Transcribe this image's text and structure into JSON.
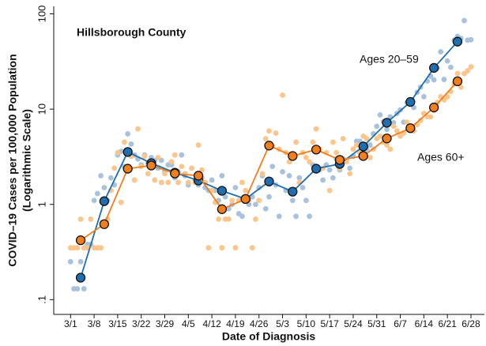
{
  "chart_data": {
    "type": "line",
    "title": "Hillsborough County",
    "xlabel": "Date of Diagnosis",
    "ylabel": [
      "COVID–19 Cases per 100,000 Population",
      "(Logarithmic Scale)"
    ],
    "yscale": "log",
    "grid": false,
    "xlim": [
      "2/25",
      "7/2"
    ],
    "xticks": [
      "3/1",
      "3/8",
      "3/15",
      "3/22",
      "3/29",
      "4/5",
      "4/12",
      "4/19",
      "4/26",
      "5/3",
      "5/10",
      "5/17",
      "5/24",
      "5/31",
      "6/7",
      "6/14",
      "6/21",
      "6/28"
    ],
    "ylim": [
      0.07,
      120
    ],
    "yticks": [
      100,
      10,
      1,
      {
        "value": 0.1,
        "label": ".1"
      }
    ],
    "x": [
      "3/1",
      "3/2",
      "3/3",
      "3/4",
      "3/5",
      "3/6",
      "3/7",
      "3/8",
      "3/9",
      "3/10",
      "3/11",
      "3/12",
      "3/13",
      "3/14",
      "3/15",
      "3/16",
      "3/17",
      "3/18",
      "3/19",
      "3/20",
      "3/21",
      "3/22",
      "3/23",
      "3/24",
      "3/25",
      "3/26",
      "3/27",
      "3/28",
      "3/29",
      "3/30",
      "3/31",
      "4/1",
      "4/2",
      "4/3",
      "4/4",
      "4/5",
      "4/6",
      "4/7",
      "4/8",
      "4/9",
      "4/10",
      "4/11",
      "4/12",
      "4/13",
      "4/14",
      "4/15",
      "4/16",
      "4/17",
      "4/18",
      "4/19",
      "4/20",
      "4/21",
      "4/22",
      "4/23",
      "4/24",
      "4/25",
      "4/26",
      "4/27",
      "4/28",
      "4/29",
      "4/30",
      "5/1",
      "5/2",
      "5/3",
      "5/4",
      "5/5",
      "5/6",
      "5/7",
      "5/8",
      "5/9",
      "5/10",
      "5/11",
      "5/12",
      "5/13",
      "5/14",
      "5/15",
      "5/16",
      "5/17",
      "5/18",
      "5/19",
      "5/20",
      "5/21",
      "5/22",
      "5/23",
      "5/24",
      "5/25",
      "5/26",
      "5/27",
      "5/28",
      "5/29",
      "5/30",
      "5/31",
      "6/1",
      "6/2",
      "6/3",
      "6/4",
      "6/5",
      "6/6",
      "6/7",
      "6/8",
      "6/9",
      "6/10",
      "6/11",
      "6/12",
      "6/13",
      "6/14",
      "6/15",
      "6/16",
      "6/17",
      "6/18",
      "6/19",
      "6/20",
      "6/21",
      "6/22",
      "6/23",
      "6/24",
      "6/25",
      "6/26",
      "6/27",
      "6/28"
    ],
    "series": [
      {
        "type": "scatter",
        "color": "#a8c2de",
        "values": [
          0.25,
          0.13,
          0.13,
          0.25,
          0.13,
          0.38,
          0.38,
          1.1,
          1.3,
          2.0,
          1.5,
          1.1,
          1.9,
          1.6,
          3.3,
          3.6,
          2.5,
          5.5,
          4.3,
          3.3,
          3.0,
          2.6,
          3.3,
          2.7,
          3.1,
          2.9,
          2.4,
          2.9,
          2.2,
          2.6,
          2.6,
          1.9,
          2.2,
          3.3,
          2.0,
          1.6,
          2.4,
          1.8,
          1.6,
          1.9,
          1.5,
          1.4,
          1.8,
          1.4,
          1.1,
          2.0,
          1.2,
          0.9,
          1.0,
          1.5,
          0.8,
          0.75,
          1.1,
          1.0,
          1.2,
          1.0,
          1.5,
          2.0,
          0.9,
          1.2,
          2.5,
          1.6,
          0.75,
          2.2,
          1.4,
          2.0,
          1.1,
          0.75,
          1.9,
          1.5,
          1.1,
          0.75,
          2.6,
          2.4,
          2.3,
          1.8,
          2.6,
          2.3,
          1.9,
          3.0,
          2.3,
          3.0,
          2.9,
          2.4,
          3.2,
          4.6,
          4.6,
          4.3,
          3.8,
          4.2,
          5.5,
          6.6,
          8.7,
          7.4,
          6.1,
          8.3,
          7.2,
          9.0,
          9.8,
          7.3,
          11.7,
          12.2,
          10.4,
          15.0,
          17.0,
          13.5,
          19.7,
          22.1,
          20.3,
          27.0,
          40.0,
          20.5,
          32.0,
          27.5,
          53.0,
          58.0,
          55.4,
          85.0,
          53.0,
          53.5
        ]
      },
      {
        "type": "scatter",
        "color": "#fcc58c",
        "values": [
          0.35,
          0.35,
          0.35,
          0.7,
          0.35,
          0.35,
          0.7,
          0.35,
          0.35,
          0.35,
          1.05,
          0.7,
          1.4,
          2.4,
          3.5,
          1.05,
          4.5,
          2.4,
          3.2,
          1.8,
          6.2,
          2.5,
          3.2,
          2.1,
          2.8,
          1.8,
          3.1,
          1.7,
          2.1,
          1.7,
          2.8,
          3.3,
          1.7,
          2.5,
          2.1,
          1.7,
          2.4,
          1.7,
          4.2,
          2.3,
          1.7,
          0.35,
          1.4,
          1.05,
          0.7,
          0.35,
          0.7,
          0.7,
          1.1,
          0.35,
          1.1,
          1.7,
          1.4,
          1.1,
          0.35,
          0.7,
          1.1,
          2.1,
          4.9,
          5.9,
          4.1,
          5.6,
          3.8,
          14.0,
          3.5,
          2.8,
          3.1,
          4.5,
          1.7,
          3.5,
          3.1,
          2.8,
          4.5,
          6.2,
          3.8,
          2.4,
          3.5,
          1.4,
          4.5,
          3.5,
          2.4,
          4.9,
          2.8,
          2.1,
          3.8,
          4.2,
          3.5,
          5.2,
          4.9,
          3.1,
          3.8,
          4.9,
          5.2,
          4.5,
          4.2,
          3.8,
          6.6,
          5.9,
          5.2,
          5.6,
          7.3,
          6.6,
          5.9,
          6.9,
          7.6,
          9.0,
          8.3,
          8.3,
          9.7,
          11.8,
          13.5,
          12.5,
          13.5,
          15.3,
          18.4,
          23.6,
          17.0,
          23.6,
          25.3,
          27.8
        ]
      },
      {
        "type": "line",
        "name": "Ages 20–59",
        "color": "#1f6eae",
        "x": [
          "3/4",
          "3/11",
          "3/18",
          "3/25",
          "4/1",
          "4/8",
          "4/15",
          "4/22",
          "4/29",
          "5/6",
          "5/13",
          "5/20",
          "5/27",
          "6/3",
          "6/10",
          "6/17",
          "6/24"
        ],
        "values": [
          0.17,
          1.08,
          3.55,
          2.71,
          2.15,
          1.78,
          1.39,
          1.14,
          1.74,
          1.36,
          2.37,
          2.66,
          4.06,
          7.2,
          11.9,
          27.1,
          51.1
        ]
      },
      {
        "type": "line",
        "name": "Ages 60+",
        "color": "#f27f1b",
        "x": [
          "3/4",
          "3/11",
          "3/18",
          "3/25",
          "4/1",
          "4/8",
          "4/15",
          "4/22",
          "4/29",
          "5/6",
          "5/13",
          "5/20",
          "5/27",
          "6/3",
          "6/10",
          "6/17",
          "6/24"
        ],
        "values": [
          0.42,
          0.62,
          2.37,
          2.56,
          2.11,
          2.0,
          0.89,
          1.14,
          4.14,
          3.22,
          3.76,
          2.93,
          3.22,
          4.92,
          6.31,
          10.4,
          19.6
        ]
      }
    ]
  }
}
